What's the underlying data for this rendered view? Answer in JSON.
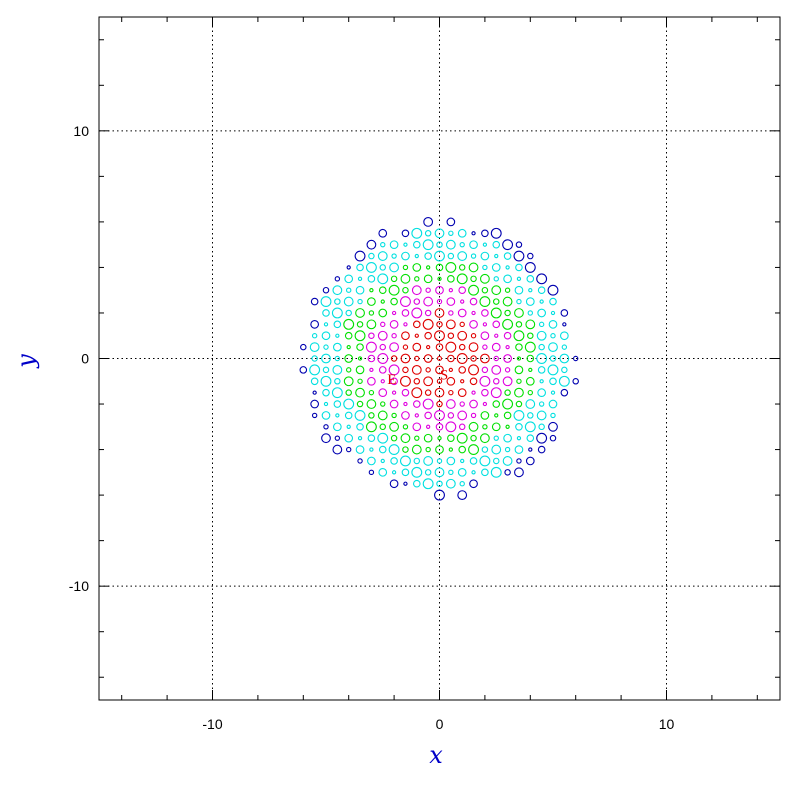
{
  "chart_data": {
    "type": "scatter",
    "title": "",
    "xlabel": "x",
    "ylabel": "y",
    "xlim": [
      -15,
      15
    ],
    "ylim": [
      -15,
      15
    ],
    "xticks": [
      -10,
      0,
      10
    ],
    "yticks": [
      -10,
      0,
      10
    ],
    "xtick_labels": [
      "-10",
      "0",
      "10"
    ],
    "ytick_labels": [
      "-10",
      "0",
      "10"
    ],
    "grid": "dotted at x = -10, 0, 10 and y = -10, 0, 10",
    "colors": {
      "red": "#e00000",
      "magenta": "#e000e0",
      "green": "#00e000",
      "cyan": "#00e0e0",
      "blue": "#0000b0",
      "axis_label": "#0000c8"
    },
    "grid_points": {
      "spacing": 0.5,
      "extent_radius": 6.0,
      "marker": "open circle",
      "color_by_radius": [
        {
          "max_r": 2.0,
          "color": "red"
        },
        {
          "max_r": 3.2,
          "color": "magenta"
        },
        {
          "max_r": 4.3,
          "color": "green"
        },
        {
          "max_r": 5.6,
          "color": "cyan"
        },
        {
          "max_r": 6.2,
          "color": "blue"
        }
      ]
    },
    "text_markers": [
      {
        "label": "E",
        "x": -2.1,
        "y": -0.9
      },
      {
        "label": "S",
        "x": 0.2,
        "y": -0.7
      }
    ]
  }
}
